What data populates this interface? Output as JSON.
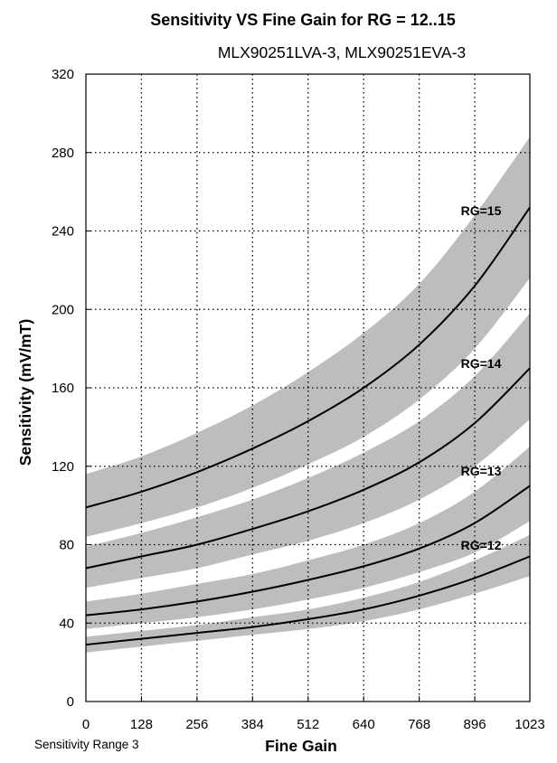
{
  "chart_data": {
    "type": "line",
    "title": "Sensitivity VS Fine Gain for RG = 12..15",
    "subtitle": "MLX90251LVA-3,   MLX90251EVA-3",
    "xlabel": "Fine Gain",
    "ylabel": "Sensitivity (mV/mT)",
    "note": "Sensitivity Range 3",
    "xlim": [
      0,
      1023
    ],
    "ylim": [
      0,
      320
    ],
    "xticks": [
      "0",
      "128",
      "256",
      "384",
      "512",
      "640",
      "768",
      "896",
      "1023"
    ],
    "yticks": [
      "0",
      "40",
      "80",
      "120",
      "160",
      "200",
      "240",
      "280",
      "320"
    ],
    "grid": true,
    "band_color": "#bdbdbd",
    "line_color": "#000000",
    "series": [
      {
        "name": "RG=12",
        "x": [
          0,
          128,
          256,
          384,
          512,
          640,
          768,
          896,
          1023
        ],
        "values": [
          29,
          32,
          35,
          38,
          42,
          47,
          54,
          63,
          74
        ],
        "upper": [
          33,
          36,
          39,
          43,
          47,
          53,
          61,
          72,
          85
        ],
        "lower": [
          25,
          28,
          31,
          34,
          37,
          41,
          47,
          55,
          64
        ]
      },
      {
        "name": "RG=13",
        "x": [
          0,
          128,
          256,
          384,
          512,
          640,
          768,
          896,
          1023
        ],
        "values": [
          44,
          47,
          51,
          56,
          62,
          69,
          78,
          91,
          110
        ],
        "upper": [
          51,
          55,
          60,
          65,
          72,
          80,
          91,
          107,
          130
        ],
        "lower": [
          37,
          40,
          43,
          47,
          52,
          58,
          66,
          76,
          92
        ]
      },
      {
        "name": "RG=14",
        "x": [
          0,
          128,
          256,
          384,
          512,
          640,
          768,
          896,
          1023
        ],
        "values": [
          68,
          74,
          80,
          88,
          97,
          108,
          122,
          142,
          170
        ],
        "upper": [
          79,
          86,
          94,
          103,
          114,
          127,
          143,
          166,
          198
        ],
        "lower": [
          58,
          63,
          68,
          75,
          82,
          91,
          103,
          120,
          144
        ]
      },
      {
        "name": "RG=15",
        "x": [
          0,
          128,
          256,
          384,
          512,
          640,
          768,
          896,
          1023
        ],
        "values": [
          99,
          107,
          117,
          129,
          143,
          160,
          182,
          212,
          252
        ],
        "upper": [
          116,
          125,
          137,
          151,
          168,
          188,
          213,
          248,
          288
        ],
        "lower": [
          84,
          91,
          99,
          109,
          121,
          135,
          154,
          180,
          216
        ]
      }
    ]
  }
}
